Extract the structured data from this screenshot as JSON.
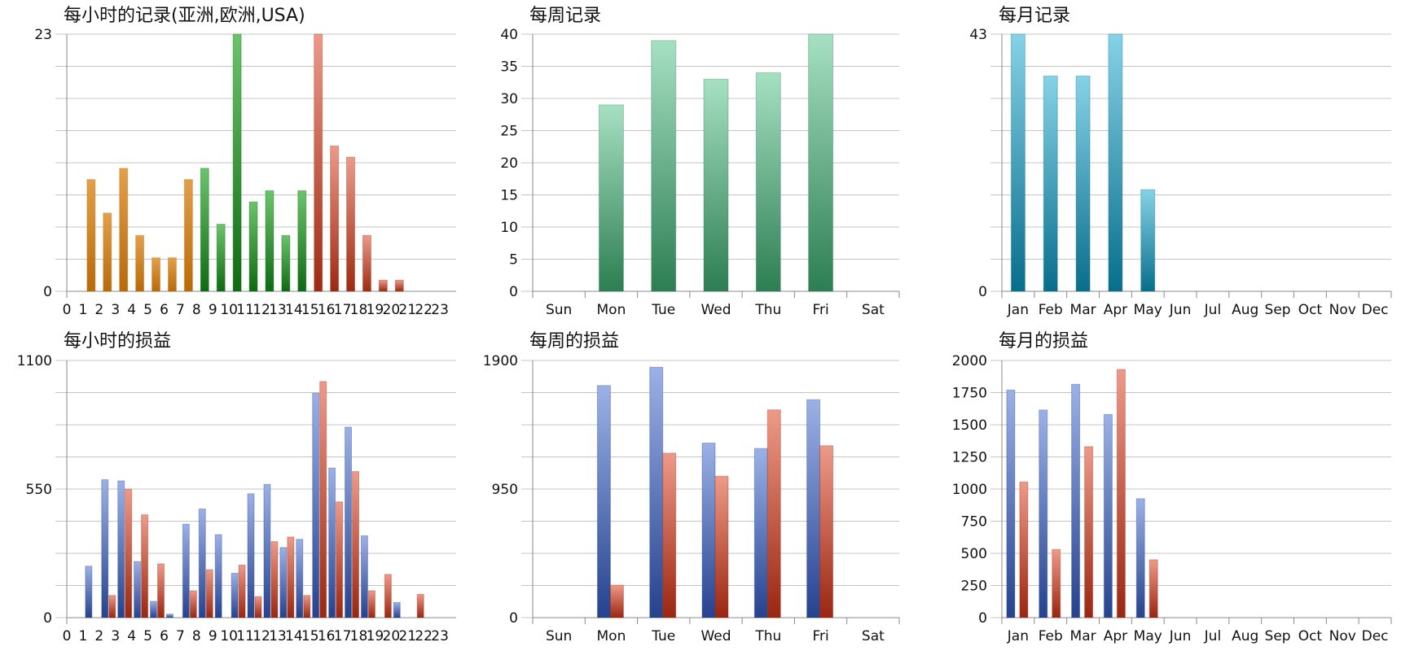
{
  "colors": {
    "hourly_asia": [
      "#e2a04a",
      "#b86a08"
    ],
    "hourly_europe": [
      "#6cc36c",
      "#0f6a14"
    ],
    "hourly_usa": [
      "#ec9a8a",
      "#9c2a12"
    ],
    "weekly_records": [
      "#a6e0c3",
      "#2d7e52"
    ],
    "monthly_records": [
      "#86d2e6",
      "#086e8c"
    ],
    "blue_series": [
      "#9bb1e6",
      "#26428e"
    ],
    "red_series": [
      "#ee9a88",
      "#9a2610"
    ]
  },
  "chart_data": [
    {
      "id": "hourly-records",
      "type": "bar",
      "title": "每小时的记录(亚洲,欧洲,USA)",
      "categories": [
        "0",
        "1",
        "2",
        "3",
        "4",
        "5",
        "6",
        "7",
        "8",
        "9",
        "10",
        "11",
        "12",
        "13",
        "14",
        "15",
        "16",
        "17",
        "18",
        "19",
        "20",
        "21",
        "22",
        "23"
      ],
      "values": [
        0,
        10,
        7,
        11,
        5,
        3,
        3,
        10,
        11,
        6,
        23,
        8,
        9,
        5,
        9,
        23,
        13,
        12,
        5,
        1,
        1,
        0,
        0,
        0
      ],
      "bar_color_groups": [
        0,
        0,
        0,
        0,
        0,
        0,
        0,
        0,
        1,
        1,
        1,
        1,
        1,
        1,
        1,
        2,
        2,
        2,
        2,
        2,
        2,
        2,
        2,
        2
      ],
      "ylim": [
        0,
        23
      ],
      "yticks": [
        0,
        23
      ],
      "grid": true
    },
    {
      "id": "weekly-records",
      "type": "bar",
      "title": "每周记录",
      "categories": [
        "Sun",
        "Mon",
        "Tue",
        "Wed",
        "Thu",
        "Fri",
        "Sat"
      ],
      "values": [
        0,
        29,
        39,
        33,
        34,
        40,
        0
      ],
      "ylim": [
        0,
        40
      ],
      "yticks": [
        0,
        5,
        10,
        15,
        20,
        25,
        30,
        35,
        40
      ],
      "grid": true
    },
    {
      "id": "monthly-records",
      "type": "bar",
      "title": "每月记录",
      "categories": [
        "Jan",
        "Feb",
        "Mar",
        "Apr",
        "May",
        "Jun",
        "Jul",
        "Aug",
        "Sep",
        "Oct",
        "Nov",
        "Dec"
      ],
      "values": [
        43,
        36,
        36,
        43,
        17,
        0,
        0,
        0,
        0,
        0,
        0,
        0
      ],
      "ylim": [
        0,
        43
      ],
      "yticks": [
        0,
        43
      ],
      "grid": true
    },
    {
      "id": "hourly-pnl",
      "type": "bar",
      "title": "每小时的损益",
      "categories": [
        "0",
        "1",
        "2",
        "3",
        "4",
        "5",
        "6",
        "7",
        "8",
        "9",
        "10",
        "11",
        "12",
        "13",
        "14",
        "15",
        "16",
        "17",
        "18",
        "19",
        "20",
        "21",
        "22",
        "23"
      ],
      "series": [
        {
          "values": [
            0,
            220,
            590,
            585,
            240,
            70,
            15,
            400,
            465,
            355,
            190,
            530,
            570,
            300,
            335,
            960,
            640,
            815,
            350,
            0,
            65,
            0,
            0,
            0
          ]
        },
        {
          "values": [
            0,
            0,
            95,
            550,
            440,
            230,
            0,
            115,
            205,
            0,
            225,
            90,
            325,
            345,
            95,
            1010,
            495,
            625,
            115,
            185,
            0,
            100,
            0,
            0
          ]
        }
      ],
      "ylim": [
        0,
        1100
      ],
      "yticks": [
        0,
        550,
        1100
      ],
      "grid": true
    },
    {
      "id": "weekly-pnl",
      "type": "bar",
      "title": "每周的损益",
      "categories": [
        "Sun",
        "Mon",
        "Tue",
        "Wed",
        "Thu",
        "Fri",
        "Sat"
      ],
      "series": [
        {
          "values": [
            0,
            1715,
            1850,
            1290,
            1250,
            1610,
            0
          ]
        },
        {
          "values": [
            0,
            240,
            1215,
            1045,
            1535,
            1270,
            0
          ]
        }
      ],
      "ylim": [
        0,
        1900
      ],
      "yticks": [
        0,
        950,
        1900
      ],
      "grid": true
    },
    {
      "id": "monthly-pnl",
      "type": "bar",
      "title": "每月的损益",
      "categories": [
        "Jan",
        "Feb",
        "Mar",
        "Apr",
        "May",
        "Jun",
        "Jul",
        "Aug",
        "Sep",
        "Oct",
        "Nov",
        "Dec"
      ],
      "series": [
        {
          "values": [
            1770,
            1615,
            1815,
            1580,
            925,
            0,
            0,
            0,
            0,
            0,
            0,
            0
          ]
        },
        {
          "values": [
            1055,
            530,
            1330,
            1930,
            450,
            0,
            0,
            0,
            0,
            0,
            0,
            0
          ]
        }
      ],
      "ylim": [
        0,
        2000
      ],
      "yticks": [
        0,
        250,
        500,
        750,
        1000,
        1250,
        1500,
        1750,
        2000
      ],
      "grid": true
    }
  ]
}
